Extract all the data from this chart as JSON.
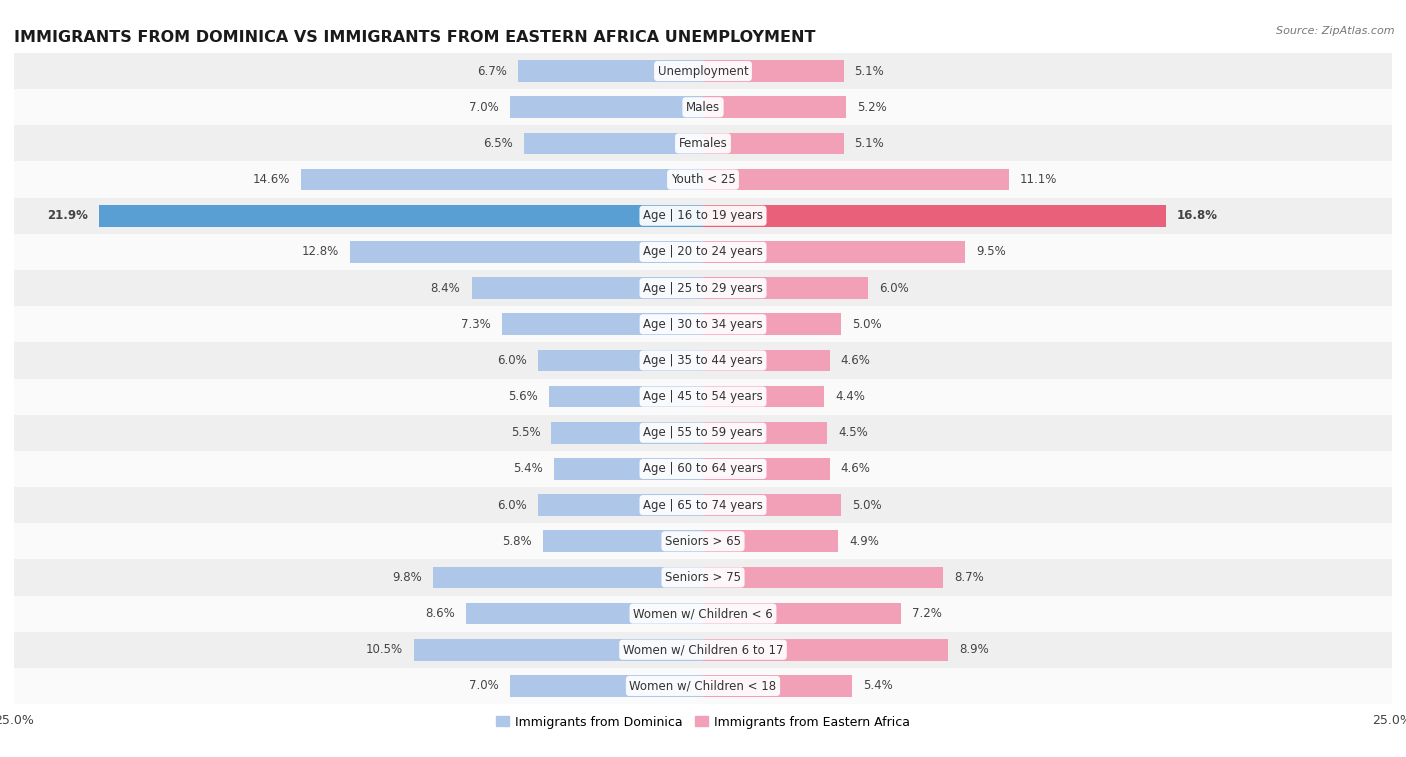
{
  "title": "IMMIGRANTS FROM DOMINICA VS IMMIGRANTS FROM EASTERN AFRICA UNEMPLOYMENT",
  "source": "Source: ZipAtlas.com",
  "categories": [
    "Unemployment",
    "Males",
    "Females",
    "Youth < 25",
    "Age | 16 to 19 years",
    "Age | 20 to 24 years",
    "Age | 25 to 29 years",
    "Age | 30 to 34 years",
    "Age | 35 to 44 years",
    "Age | 45 to 54 years",
    "Age | 55 to 59 years",
    "Age | 60 to 64 years",
    "Age | 65 to 74 years",
    "Seniors > 65",
    "Seniors > 75",
    "Women w/ Children < 6",
    "Women w/ Children 6 to 17",
    "Women w/ Children < 18"
  ],
  "dominica_values": [
    6.7,
    7.0,
    6.5,
    14.6,
    21.9,
    12.8,
    8.4,
    7.3,
    6.0,
    5.6,
    5.5,
    5.4,
    6.0,
    5.8,
    9.8,
    8.6,
    10.5,
    7.0
  ],
  "eastern_africa_values": [
    5.1,
    5.2,
    5.1,
    11.1,
    16.8,
    9.5,
    6.0,
    5.0,
    4.6,
    4.4,
    4.5,
    4.6,
    5.0,
    4.9,
    8.7,
    7.2,
    8.9,
    5.4
  ],
  "dominica_color": "#aec6e8",
  "eastern_africa_color": "#f2a0b8",
  "dominica_highlight_color": "#5a9fd4",
  "eastern_africa_highlight_color": "#e8607a",
  "bar_height": 0.6,
  "bg_row_even": "#efefef",
  "bg_row_odd": "#fafafa",
  "axis_max": 25.0,
  "label_color": "#444444",
  "title_fontsize": 11.5,
  "cat_fontsize": 8.5,
  "val_fontsize": 8.5,
  "legend_label_dominica": "Immigrants from Dominica",
  "legend_label_eastern_africa": "Immigrants from Eastern Africa"
}
